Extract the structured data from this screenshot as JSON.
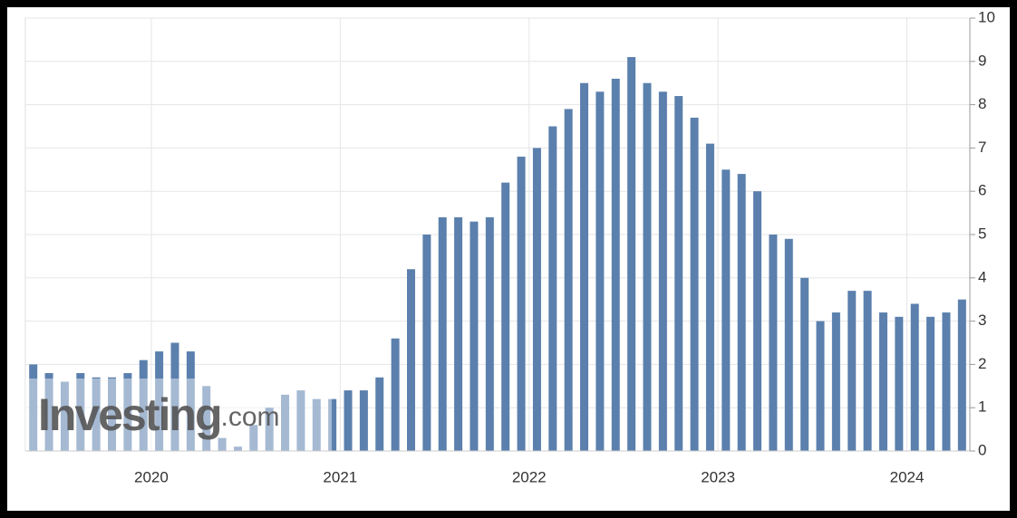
{
  "chart_data": {
    "type": "bar",
    "watermark": {
      "brand": "Investing",
      "suffix": ".com"
    },
    "categories": [
      null,
      null,
      null,
      null,
      null,
      null,
      null,
      null,
      "2020",
      null,
      null,
      null,
      null,
      null,
      null,
      null,
      null,
      null,
      null,
      null,
      "2021",
      null,
      null,
      null,
      null,
      null,
      null,
      null,
      null,
      null,
      null,
      null,
      "2022",
      null,
      null,
      null,
      null,
      null,
      null,
      null,
      null,
      null,
      null,
      null,
      "2023",
      null,
      null,
      null,
      null,
      null,
      null,
      null,
      null,
      null,
      null,
      null,
      "2024",
      null,
      null,
      null
    ],
    "values": [
      2.0,
      1.8,
      1.6,
      1.8,
      1.7,
      1.7,
      1.8,
      2.1,
      2.3,
      2.5,
      2.3,
      1.5,
      0.3,
      0.1,
      0.6,
      1.0,
      1.3,
      1.4,
      1.2,
      1.2,
      1.4,
      1.4,
      1.7,
      2.6,
      4.2,
      5.0,
      5.4,
      5.4,
      5.3,
      5.4,
      6.2,
      6.8,
      7.0,
      7.5,
      7.9,
      8.5,
      8.3,
      8.6,
      9.1,
      8.5,
      8.3,
      8.2,
      7.7,
      7.1,
      6.5,
      6.4,
      6.0,
      5.0,
      4.9,
      4.0,
      3.0,
      3.2,
      3.7,
      3.7,
      3.2,
      3.1,
      3.4,
      3.1,
      3.2,
      3.5
    ],
    "color": "#5b80ad",
    "ylim": [
      0,
      10
    ],
    "yticks": [
      0,
      1,
      2,
      3,
      4,
      5,
      6,
      7,
      8,
      9,
      10
    ],
    "y_axis_side": "right",
    "grid": true
  }
}
